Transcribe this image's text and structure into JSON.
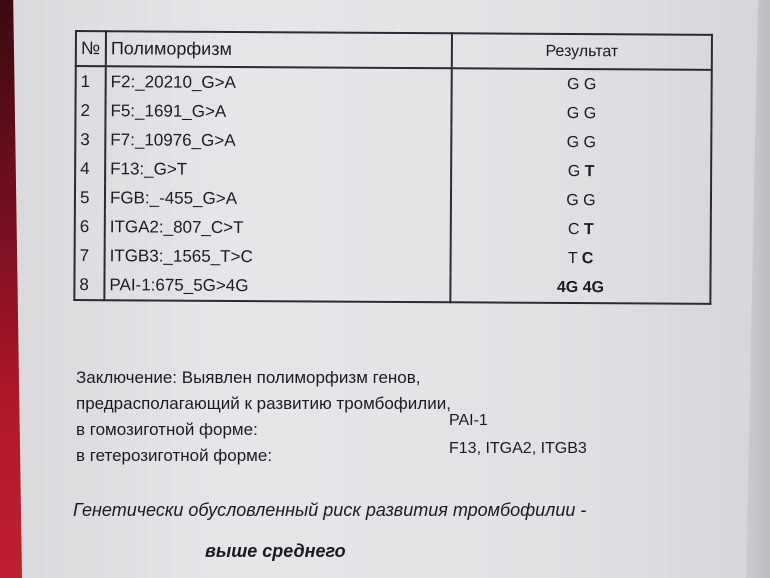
{
  "table": {
    "headers": {
      "no": "№",
      "polymorphism": "Полиморфизм",
      "result": "Результат"
    },
    "rows": [
      {
        "no": "1",
        "polymorphism": "F2:_20210_G>A",
        "allele1": "G",
        "allele2": "G",
        "allele1_bold": false,
        "allele2_bold": false
      },
      {
        "no": "2",
        "polymorphism": "F5:_1691_G>A",
        "allele1": "G",
        "allele2": "G",
        "allele1_bold": false,
        "allele2_bold": false
      },
      {
        "no": "3",
        "polymorphism": "F7:_10976_G>A",
        "allele1": "G",
        "allele2": "G",
        "allele1_bold": false,
        "allele2_bold": false
      },
      {
        "no": "4",
        "polymorphism": "F13:_G>T",
        "allele1": "G",
        "allele2": "T",
        "allele1_bold": false,
        "allele2_bold": true
      },
      {
        "no": "5",
        "polymorphism": "FGB:_-455_G>A",
        "allele1": "G",
        "allele2": "G",
        "allele1_bold": false,
        "allele2_bold": false
      },
      {
        "no": "6",
        "polymorphism": "ITGA2:_807_C>T",
        "allele1": "C",
        "allele2": "T",
        "allele1_bold": false,
        "allele2_bold": true
      },
      {
        "no": "7",
        "polymorphism": "ITGB3:_1565_T>C",
        "allele1": "T",
        "allele2": "C",
        "allele1_bold": false,
        "allele2_bold": true
      },
      {
        "no": "8",
        "polymorphism": "PAI-1:675_5G>4G",
        "allele1": "4G",
        "allele2": "4G",
        "allele1_bold": true,
        "allele2_bold": true
      }
    ]
  },
  "conclusion": {
    "line1": "Заключение: Выявлен полиморфизм генов,",
    "line2": "предрасполагающий к развитию тромбофилии,",
    "homozygous_label": "в гомозиготной форме:",
    "homozygous_value": "PAI-1",
    "heterozygous_label": "в гетерозиготной форме:",
    "heterozygous_value": "F13, ITGA2, ITGB3"
  },
  "risk": {
    "text": "Генетически обусловленный риск развития тромбофилии -",
    "level": "выше среднего"
  }
}
